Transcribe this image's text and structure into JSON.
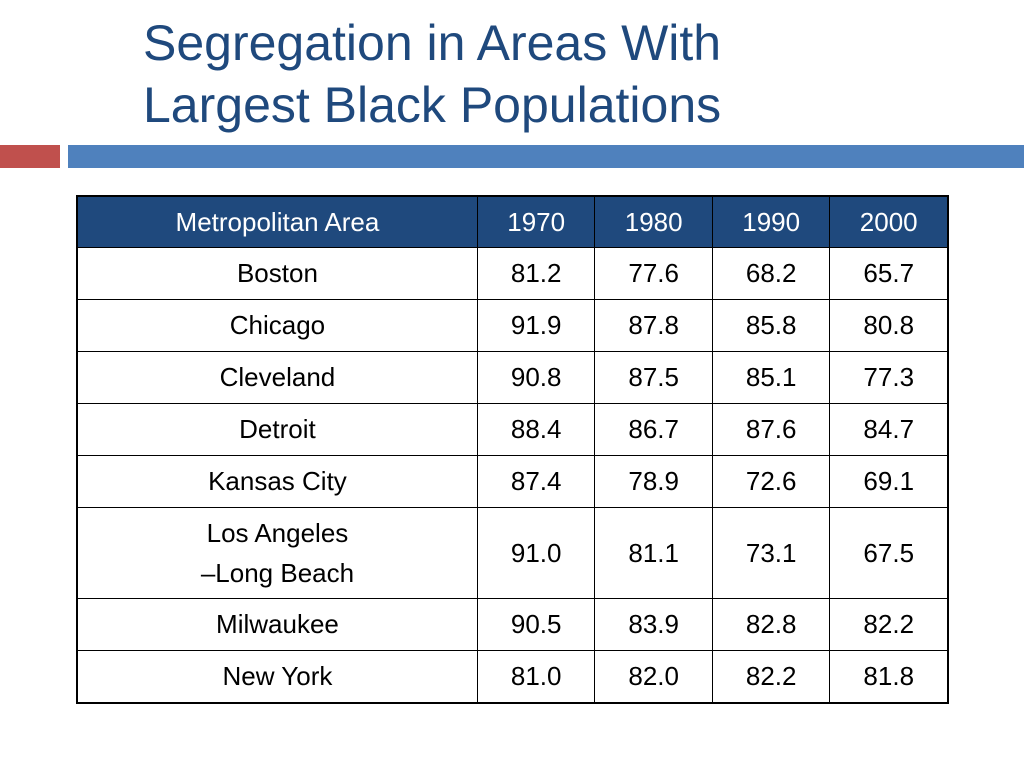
{
  "slide": {
    "title_lines": [
      "Segregation in Areas With",
      "Largest Black Populations"
    ]
  },
  "table": {
    "headers": [
      "Metropolitan Area",
      "1970",
      "1980",
      "1990",
      "2000"
    ],
    "rows": [
      {
        "area": [
          "Boston"
        ],
        "values": [
          "81.2",
          "77.6",
          "68.2",
          "65.7"
        ]
      },
      {
        "area": [
          "Chicago"
        ],
        "values": [
          "91.9",
          "87.8",
          "85.8",
          "80.8"
        ]
      },
      {
        "area": [
          "Cleveland"
        ],
        "values": [
          "90.8",
          "87.5",
          "85.1",
          "77.3"
        ]
      },
      {
        "area": [
          "Detroit"
        ],
        "values": [
          "88.4",
          "86.7",
          "87.6",
          "84.7"
        ]
      },
      {
        "area": [
          "Kansas City"
        ],
        "values": [
          "87.4",
          "78.9",
          "72.6",
          "69.1"
        ]
      },
      {
        "area": [
          "Los Angeles",
          "–Long Beach"
        ],
        "values": [
          "91.0",
          "81.1",
          "73.1",
          "67.5"
        ]
      },
      {
        "area": [
          "Milwaukee"
        ],
        "values": [
          "90.5",
          "83.9",
          "82.8",
          "82.2"
        ]
      },
      {
        "area": [
          "New York"
        ],
        "values": [
          "81.0",
          "82.0",
          "82.2",
          "81.8"
        ]
      }
    ]
  },
  "colors": {
    "title": "#1f497d",
    "header_bg": "#1f497d",
    "accent_red": "#c0504d",
    "accent_blue": "#4f81bd"
  }
}
